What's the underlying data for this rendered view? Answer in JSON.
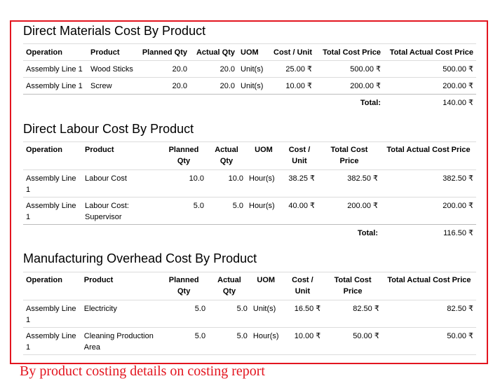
{
  "materials": {
    "title": "Direct Materials Cost By Product",
    "headers": [
      "Operation",
      "Product",
      "Planned Qty",
      "Actual Qty",
      "UOM",
      "Cost / Unit",
      "Total Cost Price",
      "Total Actual Cost Price"
    ],
    "rows": [
      [
        "Assembly Line 1",
        "Wood Sticks",
        "20.0",
        "20.0",
        "Unit(s)",
        "25.00 ₹",
        "500.00 ₹",
        "500.00 ₹"
      ],
      [
        "Assembly Line 1",
        "Screw",
        "20.0",
        "20.0",
        "Unit(s)",
        "10.00 ₹",
        "200.00 ₹",
        "200.00 ₹"
      ]
    ],
    "total_label": "Total:",
    "total_value": "140.00 ₹"
  },
  "labour": {
    "title": "Direct Labour Cost By Product",
    "headers": [
      "Operation",
      "Product",
      "Planned Qty",
      "Actual Qty",
      "UOM",
      "Cost / Unit",
      "Total Cost Price",
      "Total Actual Cost Price"
    ],
    "rows": [
      [
        "Assembly Line 1",
        "Labour Cost",
        "10.0",
        "10.0",
        "Hour(s)",
        "38.25 ₹",
        "382.50 ₹",
        "382.50 ₹"
      ],
      [
        "Assembly Line 1",
        "Labour Cost: Supervisor",
        "5.0",
        "5.0",
        "Hour(s)",
        "40.00 ₹",
        "200.00 ₹",
        "200.00 ₹"
      ]
    ],
    "total_label": "Total:",
    "total_value": "116.50 ₹"
  },
  "overhead": {
    "title": "Manufacturing Overhead Cost By Product",
    "headers": [
      "Operation",
      "Product",
      "Planned Qty",
      "Actual Qty",
      "UOM",
      "Cost / Unit",
      "Total Cost Price",
      "Total Actual Cost Price"
    ],
    "rows": [
      [
        "Assembly Line 1",
        "Electricity",
        "5.0",
        "5.0",
        "Unit(s)",
        "16.50 ₹",
        "82.50 ₹",
        "82.50 ₹"
      ],
      [
        "Assembly Line 1",
        "Cleaning Production Area",
        "5.0",
        "5.0",
        "Hour(s)",
        "10.00 ₹",
        "50.00 ₹",
        "50.00 ₹"
      ]
    ]
  },
  "caption": "By product costing details on costing report",
  "colors": {
    "frame": "#e3151f",
    "caption": "#e3151f",
    "rule": "#dcdcdc"
  }
}
